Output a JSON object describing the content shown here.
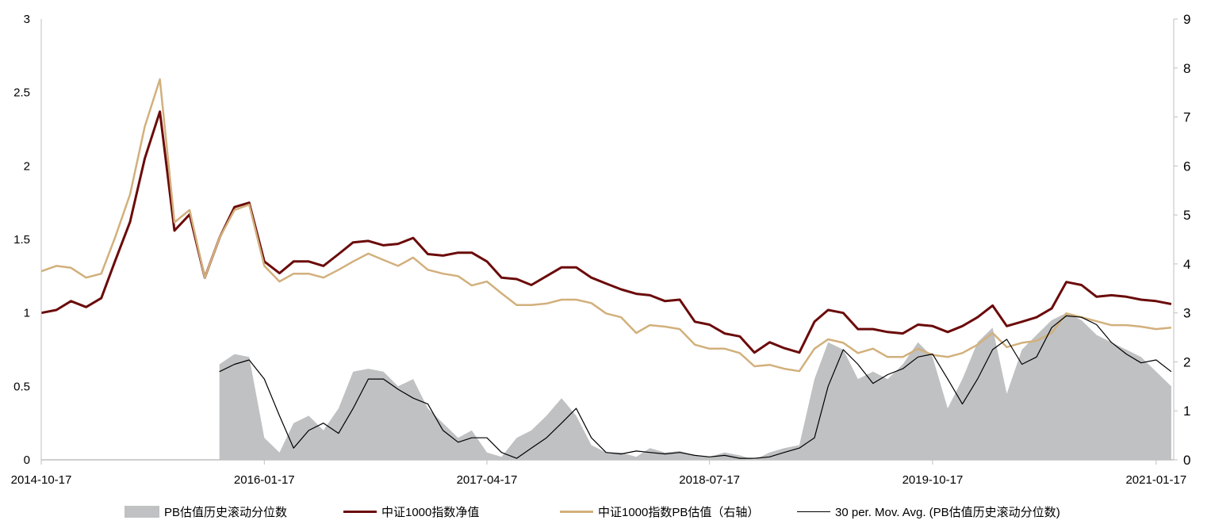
{
  "chart_data": {
    "type": "line",
    "title": "",
    "xlabel": "",
    "ylabel": "",
    "y2label": "",
    "grid": false,
    "legend_position": "bottom",
    "xlim": [
      "2014-10-17",
      "2021-02-22"
    ],
    "ylim": [
      0,
      3
    ],
    "y2lim": [
      0,
      9
    ],
    "x_ticks": [
      "2014-10-17",
      "2016-01-17",
      "2017-04-17",
      "2018-07-17",
      "2019-10-17",
      "2021-01-17"
    ],
    "y_ticks": [
      "0",
      "0.5",
      "1",
      "1.5",
      "2",
      "2.5",
      "3"
    ],
    "y2_ticks": [
      "0",
      "1",
      "2",
      "3",
      "4",
      "5",
      "6",
      "7",
      "8",
      "9"
    ],
    "x": [
      "2014-10-17",
      "2014-11-17",
      "2014-12-17",
      "2015-01-17",
      "2015-02-17",
      "2015-03-17",
      "2015-04-17",
      "2015-05-17",
      "2015-06-17",
      "2015-07-17",
      "2015-08-17",
      "2015-09-17",
      "2015-10-17",
      "2015-11-17",
      "2015-12-17",
      "2016-01-17",
      "2016-02-17",
      "2016-03-17",
      "2016-04-17",
      "2016-05-17",
      "2016-06-17",
      "2016-07-17",
      "2016-08-17",
      "2016-09-17",
      "2016-10-17",
      "2016-11-17",
      "2016-12-17",
      "2017-01-17",
      "2017-02-17",
      "2017-03-17",
      "2017-04-17",
      "2017-05-17",
      "2017-06-17",
      "2017-07-17",
      "2017-08-17",
      "2017-09-17",
      "2017-10-17",
      "2017-11-17",
      "2017-12-17",
      "2018-01-17",
      "2018-02-17",
      "2018-03-17",
      "2018-04-17",
      "2018-05-17",
      "2018-06-17",
      "2018-07-17",
      "2018-08-17",
      "2018-09-17",
      "2018-10-17",
      "2018-11-17",
      "2018-12-17",
      "2019-01-17",
      "2019-02-17",
      "2019-03-17",
      "2019-04-17",
      "2019-05-17",
      "2019-06-17",
      "2019-07-17",
      "2019-08-17",
      "2019-09-17",
      "2019-10-17",
      "2019-11-17",
      "2019-12-17",
      "2020-01-17",
      "2020-02-17",
      "2020-03-17",
      "2020-04-17",
      "2020-05-17",
      "2020-06-17",
      "2020-07-17",
      "2020-08-17",
      "2020-09-17",
      "2020-10-17",
      "2020-11-17",
      "2020-12-17",
      "2021-01-17",
      "2021-02-17"
    ],
    "series": [
      {
        "name": "PB估值历史滚动分位数",
        "kind": "area",
        "axis": "left",
        "color": "#bfc1c3",
        "values": [
          null,
          null,
          null,
          null,
          null,
          null,
          null,
          null,
          null,
          null,
          null,
          null,
          0.65,
          0.72,
          0.7,
          0.15,
          0.05,
          0.25,
          0.3,
          0.2,
          0.35,
          0.6,
          0.62,
          0.6,
          0.5,
          0.55,
          0.35,
          0.25,
          0.15,
          0.2,
          0.05,
          0.02,
          0.15,
          0.2,
          0.3,
          0.42,
          0.3,
          0.1,
          0.05,
          0.05,
          0.02,
          0.08,
          0.05,
          0.06,
          0.03,
          0.02,
          0.05,
          0.03,
          0.0,
          0.05,
          0.08,
          0.1,
          0.55,
          0.8,
          0.75,
          0.55,
          0.6,
          0.55,
          0.65,
          0.8,
          0.7,
          0.35,
          0.55,
          0.8,
          0.9,
          0.45,
          0.75,
          0.85,
          0.95,
          1.0,
          0.95,
          0.85,
          0.8,
          0.75,
          0.7,
          0.6,
          0.5
        ]
      },
      {
        "name": "中证1000指数净值",
        "kind": "line",
        "axis": "left",
        "color": "#6b0a0a",
        "values": [
          1.0,
          1.02,
          1.08,
          1.04,
          1.1,
          1.35,
          1.62,
          2.05,
          2.37,
          1.56,
          1.67,
          1.24,
          1.51,
          1.72,
          1.75,
          1.35,
          1.27,
          1.35,
          1.35,
          1.32,
          1.4,
          1.48,
          1.49,
          1.46,
          1.47,
          1.51,
          1.4,
          1.39,
          1.41,
          1.41,
          1.35,
          1.24,
          1.23,
          1.19,
          1.25,
          1.31,
          1.31,
          1.24,
          1.2,
          1.16,
          1.13,
          1.12,
          1.08,
          1.09,
          0.94,
          0.92,
          0.86,
          0.84,
          0.73,
          0.8,
          0.76,
          0.73,
          0.94,
          1.02,
          1.0,
          0.89,
          0.89,
          0.87,
          0.86,
          0.92,
          0.91,
          0.87,
          0.91,
          0.97,
          1.05,
          0.91,
          0.94,
          0.97,
          1.03,
          1.21,
          1.19,
          1.11,
          1.12,
          1.11,
          1.09,
          1.08,
          1.06
        ]
      },
      {
        "name": "中证1000指数PB估值（右轴）",
        "kind": "line",
        "axis": "right",
        "color": "#d2b07c",
        "values": [
          3.85,
          3.96,
          3.92,
          3.72,
          3.8,
          4.53,
          5.42,
          6.8,
          7.77,
          4.85,
          5.1,
          3.72,
          4.53,
          5.1,
          5.21,
          3.96,
          3.64,
          3.8,
          3.8,
          3.72,
          3.88,
          4.05,
          4.21,
          4.08,
          3.96,
          4.13,
          3.88,
          3.8,
          3.75,
          3.56,
          3.64,
          3.4,
          3.16,
          3.16,
          3.19,
          3.27,
          3.27,
          3.2,
          2.99,
          2.91,
          2.59,
          2.75,
          2.72,
          2.67,
          2.35,
          2.27,
          2.27,
          2.18,
          1.91,
          1.94,
          1.86,
          1.81,
          2.27,
          2.46,
          2.39,
          2.18,
          2.27,
          2.1,
          2.1,
          2.27,
          2.14,
          2.1,
          2.18,
          2.35,
          2.59,
          2.3,
          2.39,
          2.43,
          2.59,
          2.99,
          2.91,
          2.83,
          2.75,
          2.75,
          2.72,
          2.67,
          2.7
        ]
      },
      {
        "name": "30 per. Mov. Avg. (PB估值历史滚动分位数)",
        "kind": "line",
        "axis": "left",
        "color": "#000000",
        "values": [
          null,
          null,
          null,
          null,
          null,
          null,
          null,
          null,
          null,
          null,
          null,
          null,
          0.6,
          0.65,
          0.68,
          0.55,
          0.3,
          0.08,
          0.2,
          0.25,
          0.18,
          0.35,
          0.55,
          0.55,
          0.48,
          0.42,
          0.38,
          0.2,
          0.12,
          0.15,
          0.15,
          0.05,
          0.01,
          0.08,
          0.15,
          0.25,
          0.35,
          0.15,
          0.05,
          0.04,
          0.06,
          0.05,
          0.04,
          0.05,
          0.03,
          0.02,
          0.03,
          0.01,
          0.01,
          0.02,
          0.05,
          0.08,
          0.15,
          0.5,
          0.75,
          0.65,
          0.52,
          0.58,
          0.62,
          0.7,
          0.72,
          0.55,
          0.38,
          0.55,
          0.75,
          0.82,
          0.65,
          0.7,
          0.9,
          0.98,
          0.97,
          0.92,
          0.8,
          0.72,
          0.66,
          0.68,
          0.6
        ]
      }
    ]
  }
}
